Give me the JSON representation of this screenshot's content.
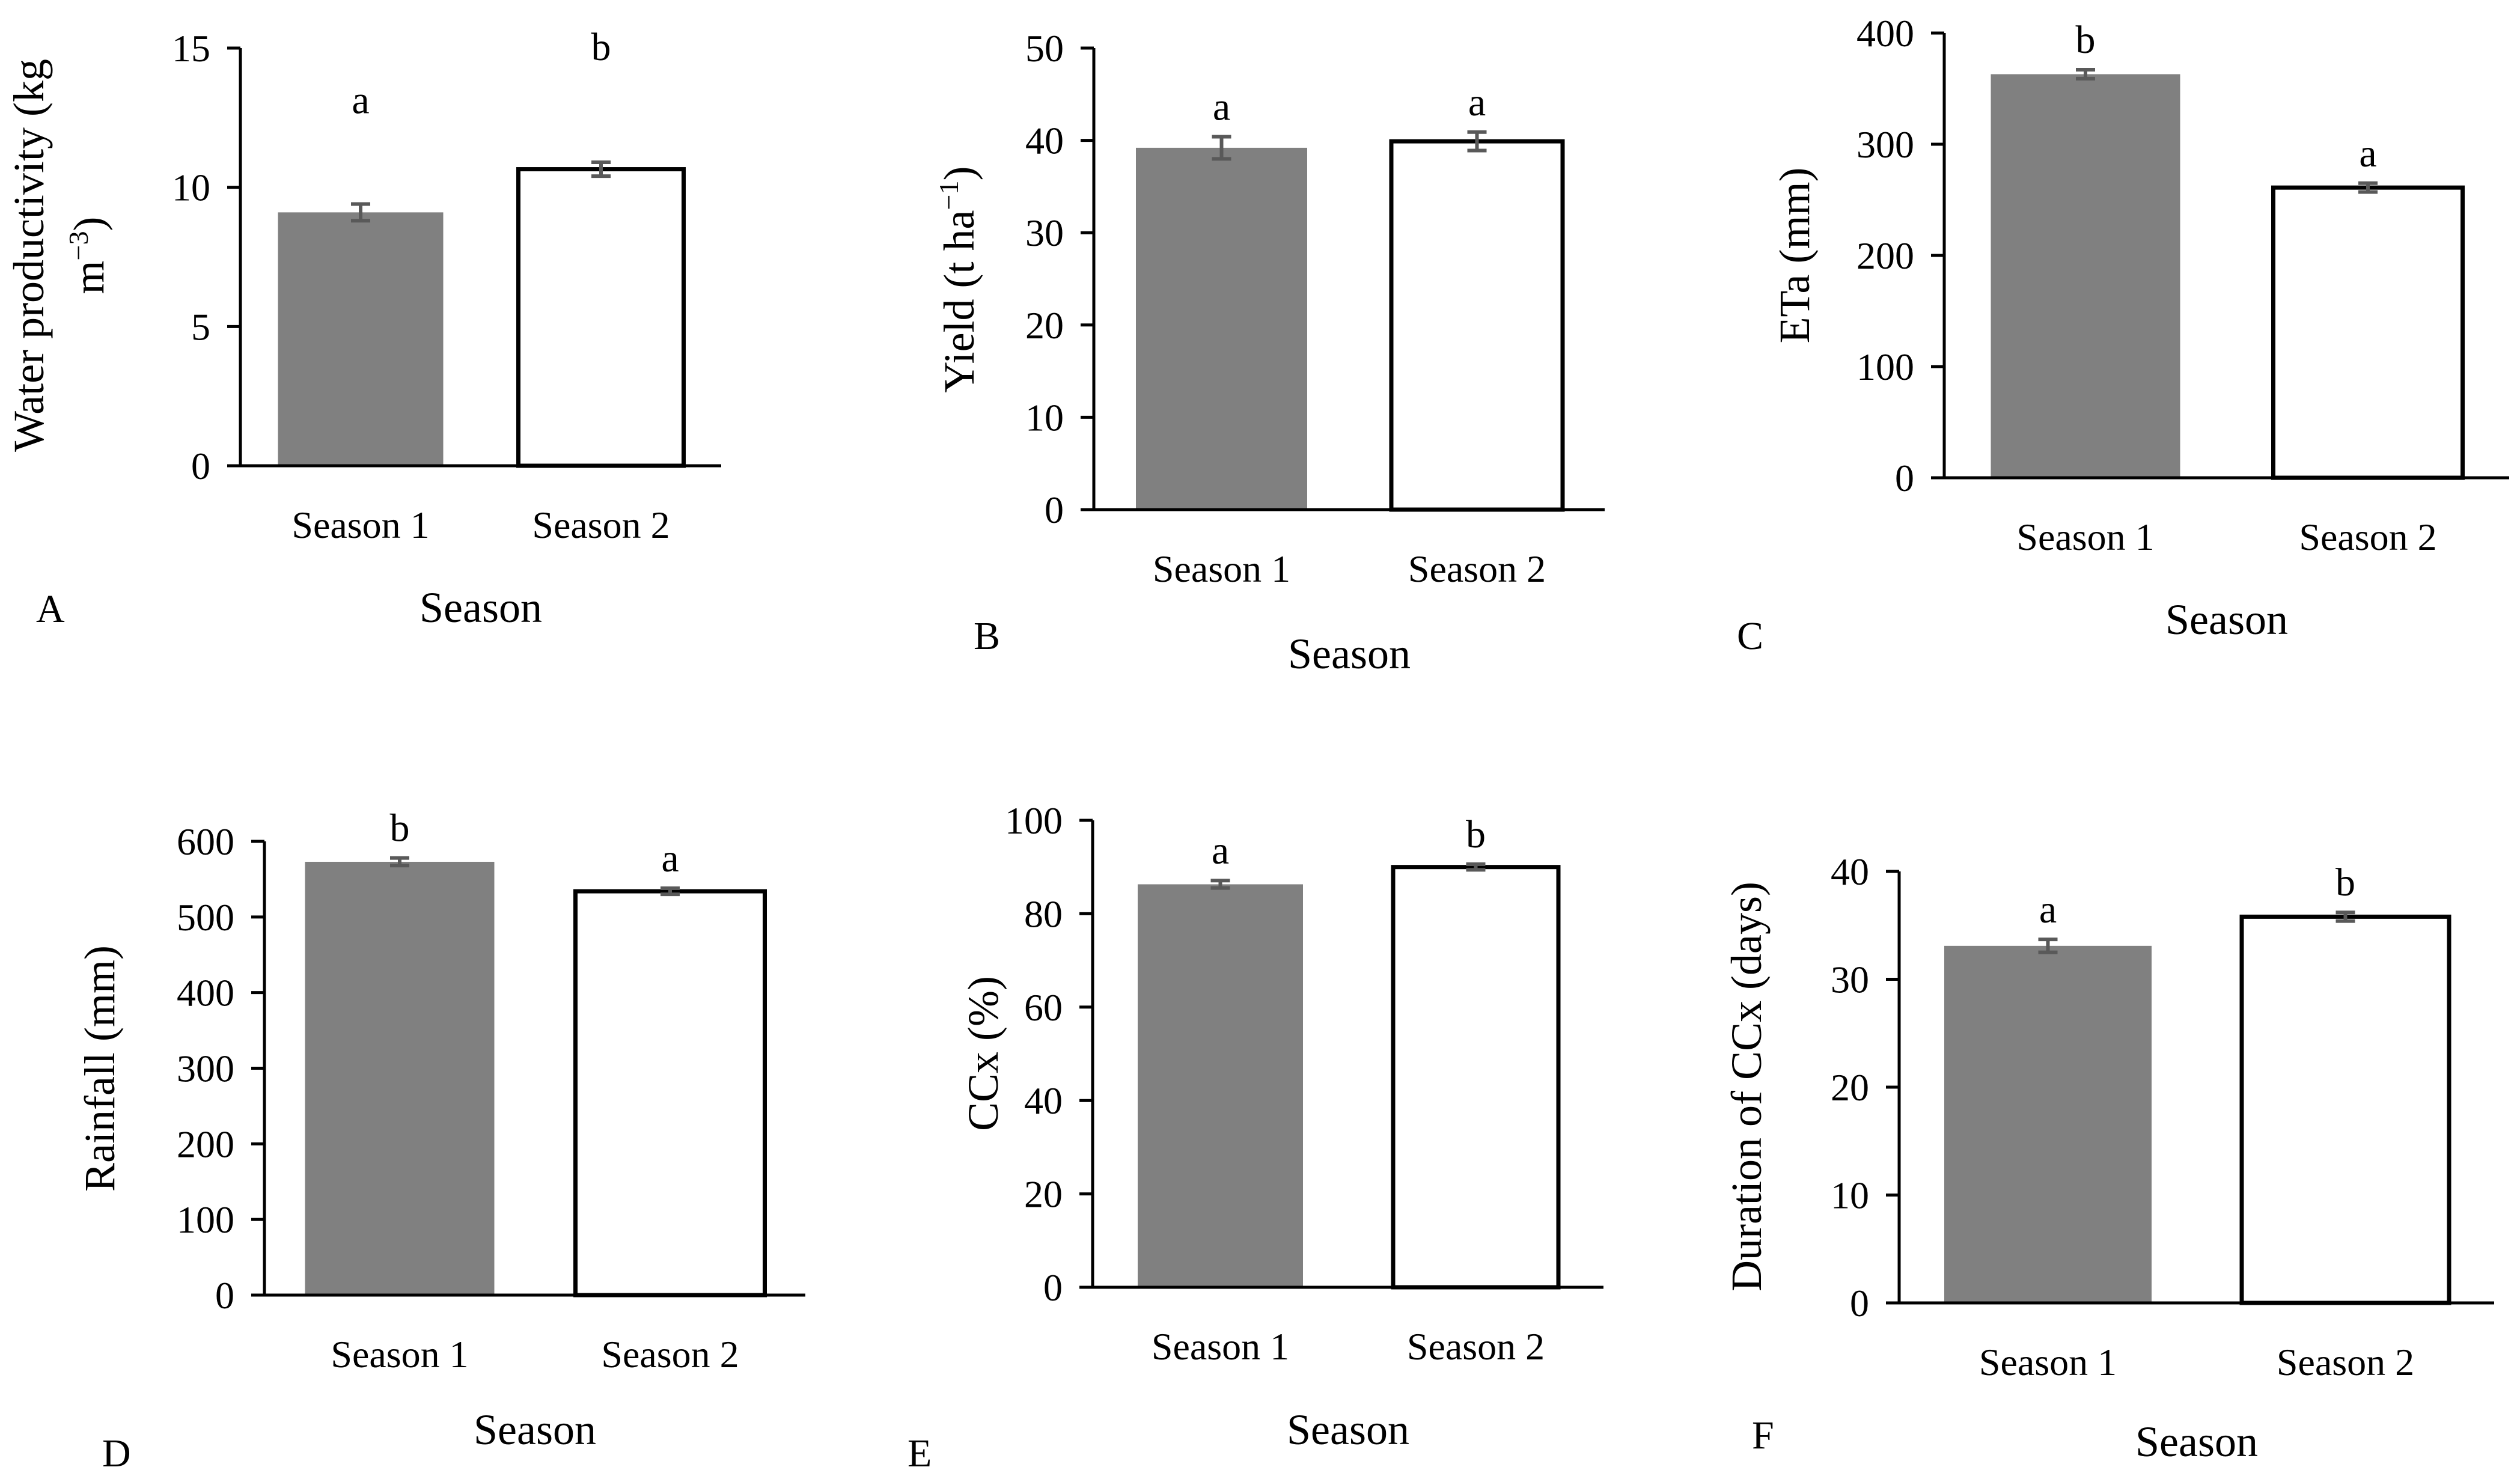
{
  "figure": {
    "background": "#ffffff"
  },
  "style": {
    "season1_fill": "#808080",
    "season2_fill": "#ffffff",
    "bar_stroke": "#000000",
    "errorbar_color": "#595959",
    "axis_color": "#000000"
  },
  "chart_data": [
    {
      "panel": "A",
      "type": "bar",
      "categories": [
        "Season 1",
        "Season 2"
      ],
      "values": [
        9.1,
        10.65
      ],
      "errors": [
        0.3,
        0.25
      ],
      "significance": [
        "a",
        "b"
      ],
      "ylabel": [
        "Water productivity (kg",
        "m"
      ],
      "ylabel_sup": "−3",
      "ylabel_close": ")",
      "xlabel": "Season",
      "yticks": [
        "0",
        "5",
        "10",
        "15"
      ],
      "ylim": [
        0,
        15
      ],
      "tick_step": 5
    },
    {
      "panel": "B",
      "type": "bar",
      "categories": [
        "Season 1",
        "Season 2"
      ],
      "values": [
        39.2,
        39.9
      ],
      "errors": [
        1.2,
        1.0
      ],
      "significance": [
        "a",
        "a"
      ],
      "ylabel": [
        "Yield (t ha"
      ],
      "ylabel_sup": "−1",
      "ylabel_close": ")",
      "xlabel": "Season",
      "yticks": [
        "0",
        "10",
        "20",
        "30",
        "40",
        "50"
      ],
      "ylim": [
        0,
        50
      ],
      "tick_step": 10
    },
    {
      "panel": "C",
      "type": "bar",
      "categories": [
        "Season 1",
        "Season 2"
      ],
      "values": [
        363,
        261
      ],
      "errors": [
        4,
        4
      ],
      "significance": [
        "b",
        "a"
      ],
      "ylabel": [
        "ETa (mm)"
      ],
      "ylabel_sup": "",
      "ylabel_close": "",
      "xlabel": "Season",
      "yticks": [
        "0",
        "100",
        "200",
        "300",
        "400"
      ],
      "ylim": [
        0,
        400
      ],
      "tick_step": 100
    },
    {
      "panel": "D",
      "type": "bar",
      "categories": [
        "Season 1",
        "Season 2"
      ],
      "values": [
        573,
        534
      ],
      "errors": [
        5,
        4
      ],
      "significance": [
        "b",
        "a"
      ],
      "ylabel": [
        "Rainfall (mm)"
      ],
      "ylabel_sup": "",
      "ylabel_close": "",
      "xlabel": "Season",
      "yticks": [
        "0",
        "100",
        "200",
        "300",
        "400",
        "500",
        "600"
      ],
      "ylim": [
        0,
        600
      ],
      "tick_step": 100
    },
    {
      "panel": "E",
      "type": "bar",
      "categories": [
        "Season 1",
        "Season 2"
      ],
      "values": [
        86.3,
        90.0
      ],
      "errors": [
        0.8,
        0.6
      ],
      "significance": [
        "a",
        "b"
      ],
      "ylabel": [
        "CCx (%)"
      ],
      "ylabel_sup": "",
      "ylabel_close": "",
      "xlabel": "Season",
      "yticks": [
        "0",
        "20",
        "40",
        "60",
        "80",
        "100"
      ],
      "ylim": [
        0,
        100
      ],
      "tick_step": 20
    },
    {
      "panel": "F",
      "type": "bar",
      "categories": [
        "Season 1",
        "Season 2"
      ],
      "values": [
        33.1,
        35.8
      ],
      "errors": [
        0.6,
        0.4
      ],
      "significance": [
        "a",
        "b"
      ],
      "ylabel": [
        "Duration of CCx (days)"
      ],
      "ylabel_sup": "",
      "ylabel_close": "",
      "xlabel": "Season",
      "yticks": [
        "0",
        "10",
        "20",
        "30",
        "40"
      ],
      "ylim": [
        0,
        40
      ],
      "tick_step": 10
    }
  ]
}
